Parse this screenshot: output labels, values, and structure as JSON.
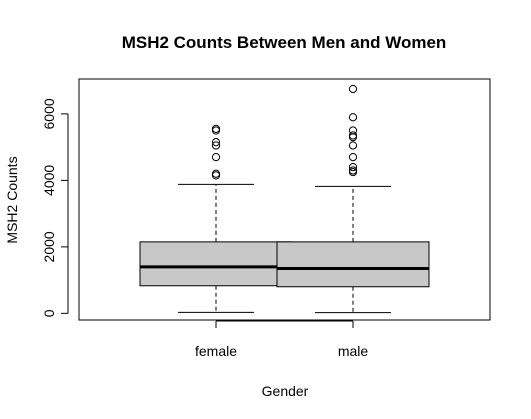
{
  "chart_data": {
    "type": "boxplot",
    "title": "MSH2 Counts Between Men and Women",
    "xlabel": "Gender",
    "ylabel": "MSH2 Counts",
    "categories": [
      "female",
      "male"
    ],
    "y_ticks": [
      0,
      2000,
      4000,
      6000
    ],
    "y_tick_labels": [
      "0",
      "2000",
      "4000",
      "6000"
    ],
    "ylim": [
      -200,
      7050
    ],
    "grid": false,
    "box_fill": "#c8c8c8",
    "series": [
      {
        "category": "female",
        "whisker_low": 30,
        "q1": 830,
        "median": 1400,
        "q3": 2150,
        "whisker_high": 3880,
        "outliers": [
          4150,
          4200,
          4700,
          5050,
          5150,
          5500,
          5550
        ]
      },
      {
        "category": "male",
        "whisker_low": 20,
        "q1": 800,
        "median": 1350,
        "q3": 2150,
        "whisker_high": 3820,
        "outliers": [
          4250,
          4300,
          4400,
          4700,
          5050,
          5300,
          5350,
          5500,
          5900,
          6750
        ]
      }
    ]
  }
}
